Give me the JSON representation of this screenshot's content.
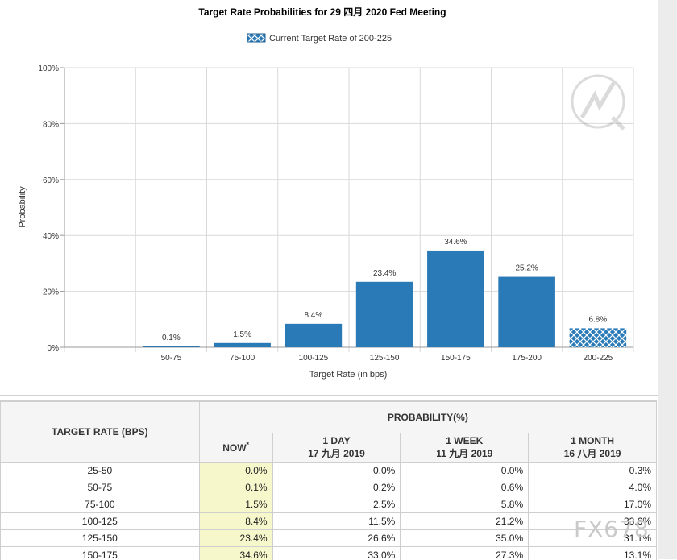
{
  "chart_data": {
    "type": "bar",
    "title": "Target Rate Probabilities for 29 四月 2020  Fed Meeting",
    "legend": "Current Target Rate of 200-225",
    "xlabel": "Target Rate (in bps)",
    "ylabel": "Probability",
    "ylim": [
      0,
      100
    ],
    "yticks": [
      "0%",
      "20%",
      "40%",
      "60%",
      "80%",
      "100%"
    ],
    "categories": [
      "50-75",
      "75-100",
      "100-125",
      "125-150",
      "150-175",
      "175-200",
      "200-225"
    ],
    "values": [
      0.1,
      1.5,
      8.4,
      23.4,
      34.6,
      25.2,
      6.8
    ],
    "value_labels": [
      "0.1%",
      "1.5%",
      "8.4%",
      "23.4%",
      "34.6%",
      "25.2%",
      "6.8%"
    ],
    "highlight_category": "200-225",
    "bar_color": "#2a7ab8",
    "grid": true
  },
  "table": {
    "target_rate_header": "TARGET RATE (BPS)",
    "probability_header": "PROBABILITY(%)",
    "columns": [
      {
        "line1": "NOW",
        "line2": "",
        "mark": "*"
      },
      {
        "line1": "1 DAY",
        "line2": "17 九月 2019",
        "mark": ""
      },
      {
        "line1": "1 WEEK",
        "line2": "11 九月 2019",
        "mark": ""
      },
      {
        "line1": "1 MONTH",
        "line2": "16 八月 2019",
        "mark": ""
      }
    ],
    "rows": [
      {
        "rate": "25-50",
        "now": "0.0%",
        "day": "0.0%",
        "week": "0.0%",
        "month": "0.3%"
      },
      {
        "rate": "50-75",
        "now": "0.1%",
        "day": "0.2%",
        "week": "0.6%",
        "month": "4.0%"
      },
      {
        "rate": "75-100",
        "now": "1.5%",
        "day": "2.5%",
        "week": "5.8%",
        "month": "17.0%"
      },
      {
        "rate": "100-125",
        "now": "8.4%",
        "day": "11.5%",
        "week": "21.2%",
        "month": "33.6%"
      },
      {
        "rate": "125-150",
        "now": "23.4%",
        "day": "26.6%",
        "week": "35.0%",
        "month": "31.1%"
      },
      {
        "rate": "150-175",
        "now": "34.6%",
        "day": "33.0%",
        "week": "27.3%",
        "month": "13.1%"
      }
    ]
  },
  "watermark": "FX678"
}
